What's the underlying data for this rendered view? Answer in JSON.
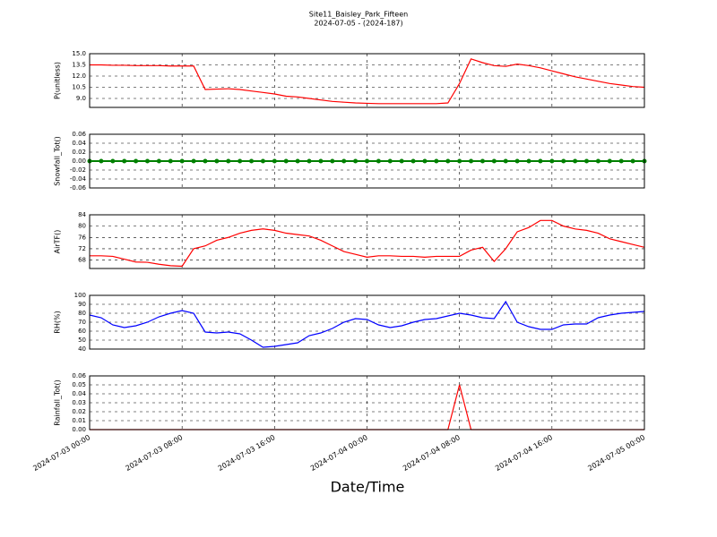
{
  "title": "Site11_Baisley_Park_Fifteen",
  "subtitle": "2024-07-05 - (2024-187)",
  "x_label": "Date/Time",
  "xlim": [
    "2024-07-03 00:00",
    "2024-07-05 00:00"
  ],
  "xticks": [
    "2024-07-03 00:00",
    "2024-07-03 08:00",
    "2024-07-03 16:00",
    "2024-07-04 00:00",
    "2024-07-04 08:00",
    "2024-07-04 16:00",
    "2024-07-05 00:00"
  ],
  "x": [
    "2024-07-03 00:00",
    "2024-07-03 01:00",
    "2024-07-03 02:00",
    "2024-07-03 03:00",
    "2024-07-03 04:00",
    "2024-07-03 05:00",
    "2024-07-03 06:00",
    "2024-07-03 07:00",
    "2024-07-03 08:00",
    "2024-07-03 09:00",
    "2024-07-03 10:00",
    "2024-07-03 11:00",
    "2024-07-03 12:00",
    "2024-07-03 13:00",
    "2024-07-03 14:00",
    "2024-07-03 15:00",
    "2024-07-03 16:00",
    "2024-07-03 17:00",
    "2024-07-03 18:00",
    "2024-07-03 19:00",
    "2024-07-03 20:00",
    "2024-07-03 21:00",
    "2024-07-03 22:00",
    "2024-07-03 23:00",
    "2024-07-04 00:00",
    "2024-07-04 01:00",
    "2024-07-04 02:00",
    "2024-07-04 03:00",
    "2024-07-04 04:00",
    "2024-07-04 05:00",
    "2024-07-04 06:00",
    "2024-07-04 07:00",
    "2024-07-04 08:00",
    "2024-07-04 09:00",
    "2024-07-04 10:00",
    "2024-07-04 11:00",
    "2024-07-04 12:00",
    "2024-07-04 13:00",
    "2024-07-04 14:00",
    "2024-07-04 15:00",
    "2024-07-04 16:00",
    "2024-07-04 17:00",
    "2024-07-04 18:00",
    "2024-07-04 19:00",
    "2024-07-04 20:00",
    "2024-07-04 21:00",
    "2024-07-04 22:00",
    "2024-07-04 23:00",
    "2024-07-05 00:00"
  ],
  "chart_data": [
    {
      "type": "line",
      "y_label": "P(unitless)",
      "ylim": [
        7.8,
        15.0
      ],
      "grid": true,
      "yticks": [
        {
          "value": 9,
          "label": "9.0"
        },
        10.5,
        {
          "value": 12,
          "label": "12.0"
        },
        13.5,
        {
          "value": 15,
          "label": "15.0"
        }
      ],
      "series": [
        {
          "color": "#ff0000",
          "values": [
            13.5,
            13.5,
            13.45,
            13.45,
            13.4,
            13.4,
            13.4,
            13.35,
            13.35,
            13.35,
            10.2,
            10.25,
            10.3,
            10.2,
            10.0,
            9.8,
            9.6,
            9.3,
            9.2,
            9.0,
            8.8,
            8.6,
            8.5,
            8.4,
            8.35,
            8.3,
            8.3,
            8.3,
            8.3,
            8.3,
            8.3,
            8.4,
            11.0,
            14.3,
            13.8,
            13.4,
            13.3,
            13.6,
            13.4,
            13.1,
            12.7,
            12.3,
            11.9,
            11.6,
            11.3,
            11.0,
            10.8,
            10.6,
            10.5
          ]
        }
      ]
    },
    {
      "type": "line",
      "y_label": "Snowfall_Tot()",
      "ylim": [
        -0.06,
        0.06
      ],
      "grid": true,
      "markers": true,
      "yticks": [
        -0.06,
        -0.04,
        -0.02,
        {
          "value": 0,
          "label": "0.00"
        },
        0.02,
        0.04,
        0.06
      ],
      "series": [
        {
          "color": "#008000",
          "values": [
            0,
            0,
            0,
            0,
            0,
            0,
            0,
            0,
            0,
            0,
            0,
            0,
            0,
            0,
            0,
            0,
            0,
            0,
            0,
            0,
            0,
            0,
            0,
            0,
            0,
            0,
            0,
            0,
            0,
            0,
            0,
            0,
            0,
            0,
            0,
            0,
            0,
            0,
            0,
            0,
            0,
            0,
            0,
            0,
            0,
            0,
            0,
            0,
            0
          ]
        }
      ]
    },
    {
      "type": "line",
      "y_label": "AirTF()",
      "ylim": [
        65,
        84
      ],
      "grid": true,
      "yticks": [
        68,
        72,
        76,
        80,
        84
      ],
      "series": [
        {
          "color": "#ff0000",
          "values": [
            69.5,
            69.5,
            69.3,
            68.3,
            67.3,
            67.2,
            66.5,
            66,
            65.8,
            72,
            73,
            75,
            76,
            77.5,
            78.5,
            79,
            78.5,
            77.5,
            77,
            76.5,
            75,
            73,
            71,
            70,
            69,
            69.5,
            69.5,
            69.3,
            69.3,
            69,
            69.3,
            69.3,
            69.3,
            71.5,
            72.5,
            67.5,
            72,
            78,
            79.5,
            82,
            82,
            80,
            79,
            78.5,
            77.5,
            75.5,
            74.5,
            73.5,
            72.5
          ]
        }
      ]
    },
    {
      "type": "line",
      "y_label": "RH(%)",
      "ylim": [
        40,
        100
      ],
      "grid": true,
      "yticks": [
        40,
        50,
        60,
        70,
        80,
        90,
        100
      ],
      "series": [
        {
          "color": "#0000ff",
          "values": [
            78,
            75,
            67,
            64,
            66,
            70,
            76,
            80,
            83,
            80,
            59,
            58,
            59,
            57,
            50,
            42,
            43,
            45,
            47,
            55,
            58,
            63,
            70,
            74,
            73,
            67,
            64,
            66,
            70,
            73,
            74,
            77,
            80,
            78,
            75,
            74,
            93,
            70,
            65,
            62,
            62,
            67,
            68,
            68,
            75,
            78,
            80,
            81,
            82
          ]
        }
      ]
    },
    {
      "type": "line",
      "y_label": "Rainfall_Tot()",
      "ylim": [
        0,
        0.06
      ],
      "grid": true,
      "yticks": [
        {
          "value": 0,
          "label": "0.00"
        },
        0.01,
        0.02,
        0.03,
        0.04,
        0.05,
        0.06
      ],
      "series": [
        {
          "color": "#ff0000",
          "values": [
            0,
            0,
            0,
            0,
            0,
            0,
            0,
            0,
            0,
            0,
            0,
            0,
            0,
            0,
            0,
            0,
            0,
            0,
            0,
            0,
            0,
            0,
            0,
            0,
            0,
            0,
            0,
            0,
            0,
            0,
            0,
            0,
            0.05,
            0,
            0,
            0,
            0,
            0,
            0,
            0,
            0,
            0,
            0,
            0,
            0,
            0,
            0,
            0,
            0
          ]
        }
      ]
    }
  ]
}
